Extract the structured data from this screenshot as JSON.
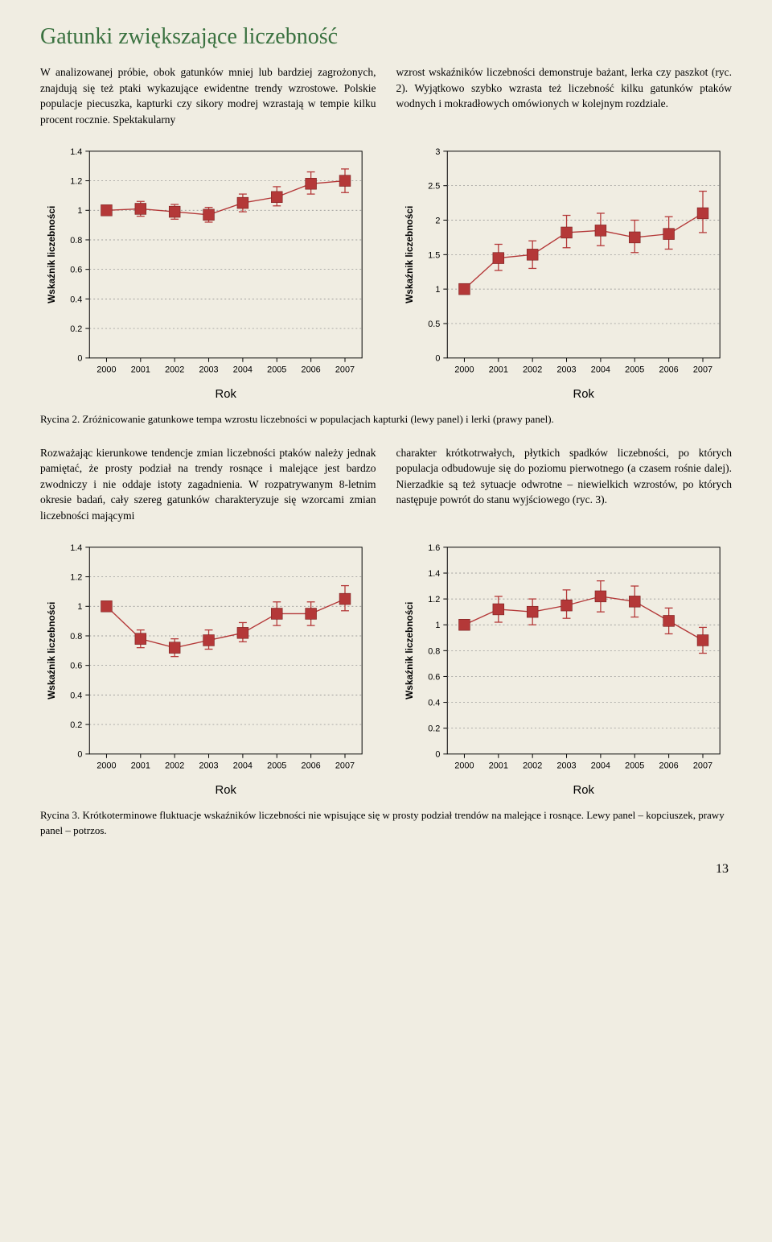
{
  "title": "Gatunki zwiększające liczebność",
  "para1_left": "W analizowanej próbie, obok gatunków mniej lub bardziej zagrożonych, znajdują się też ptaki wykazujące ewidentne trendy wzrostowe. Polskie populacje piecuszka, kapturki czy sikory modrej wzrastają w tempie kilku procent rocznie. Spektakularny",
  "para1_right": "wzrost wskaźników liczebności demonstruje bażant, lerka czy paszkot (ryc. 2). Wyjątkowo szybko wzrasta też liczebność kilku gatunków ptaków wodnych i mokradłowych omówionych w kolejnym rozdziale.",
  "caption2": "Rycina 2. Zróżnicowanie gatunkowe tempa wzrostu liczebności w populacjach kapturki (lewy panel) i lerki (prawy panel).",
  "para2_left": "Rozważając kierunkowe tendencje zmian liczebności ptaków należy jednak pamiętać, że prosty podział na trendy rosnące i malejące jest bardzo zwodniczy i nie oddaje istoty zagadnienia. W rozpatrywanym 8-letnim okresie badań, cały szereg gatunków charakteryzuje się wzorcami zmian liczebności mającymi",
  "para2_right": "charakter krótkotrwałych, płytkich spadków liczebności, po których populacja odbudowuje się do poziomu pierwotnego (a czasem rośnie dalej). Nierzadkie są też sytuacje odwrotne – niewielkich wzrostów, po których następuje powrót do stanu wyjściowego (ryc. 3).",
  "caption3": "Rycina 3. Krótkoterminowe fluktuacje wskaźników liczebności nie wpisujące się w prosty podział trendów na malejące i rosnące. Lewy panel – kopciuszek, prawy panel – potrzos.",
  "page_number": "13",
  "ylabel": "Wskaźnik liczebności",
  "xlabel": "Rok",
  "years": [
    "2000",
    "2001",
    "2002",
    "2003",
    "2004",
    "2005",
    "2006",
    "2007"
  ],
  "chart_style": {
    "marker_color": "#b43838",
    "grid_color": "#888888",
    "axis_color": "#000000",
    "background_color": "#f0ede2",
    "marker_size": 7,
    "line_width": 1.4,
    "tick_font_size": 11,
    "label_font_size": 12,
    "xlabel_font_size": 15
  },
  "chart_tl": {
    "ylim": [
      0,
      1.4
    ],
    "yticks": [
      0,
      0.2,
      0.4,
      0.6,
      0.8,
      1,
      1.2,
      1.4
    ],
    "values": [
      1.0,
      1.01,
      0.99,
      0.97,
      1.05,
      1.09,
      1.18,
      1.2
    ],
    "err_low": [
      0.0,
      0.05,
      0.05,
      0.05,
      0.06,
      0.06,
      0.07,
      0.08
    ],
    "err_high": [
      0.0,
      0.05,
      0.05,
      0.05,
      0.06,
      0.07,
      0.08,
      0.08
    ]
  },
  "chart_tr": {
    "ylim": [
      0,
      3
    ],
    "yticks": [
      0,
      0.5,
      1,
      1.5,
      2,
      2.5,
      3
    ],
    "values": [
      1.0,
      1.45,
      1.5,
      1.82,
      1.85,
      1.75,
      1.8,
      2.1
    ],
    "err_low": [
      0.0,
      0.18,
      0.2,
      0.22,
      0.22,
      0.22,
      0.22,
      0.28
    ],
    "err_high": [
      0.0,
      0.2,
      0.2,
      0.25,
      0.25,
      0.25,
      0.25,
      0.32
    ]
  },
  "chart_bl": {
    "ylim": [
      0,
      1.4
    ],
    "yticks": [
      0,
      0.2,
      0.4,
      0.6,
      0.8,
      1,
      1.2,
      1.4
    ],
    "values": [
      1.0,
      0.78,
      0.72,
      0.77,
      0.82,
      0.95,
      0.95,
      1.05
    ],
    "err_low": [
      0.0,
      0.06,
      0.06,
      0.06,
      0.06,
      0.08,
      0.08,
      0.08
    ],
    "err_high": [
      0.0,
      0.06,
      0.06,
      0.07,
      0.07,
      0.08,
      0.08,
      0.09
    ]
  },
  "chart_br": {
    "ylim": [
      0,
      1.6
    ],
    "yticks": [
      0,
      0.2,
      0.4,
      0.6,
      0.8,
      1,
      1.2,
      1.4,
      1.6
    ],
    "values": [
      1.0,
      1.12,
      1.1,
      1.15,
      1.22,
      1.18,
      1.03,
      0.88
    ],
    "err_low": [
      0.0,
      0.1,
      0.1,
      0.1,
      0.12,
      0.12,
      0.1,
      0.1
    ],
    "err_high": [
      0.0,
      0.1,
      0.1,
      0.12,
      0.12,
      0.12,
      0.1,
      0.1
    ]
  }
}
